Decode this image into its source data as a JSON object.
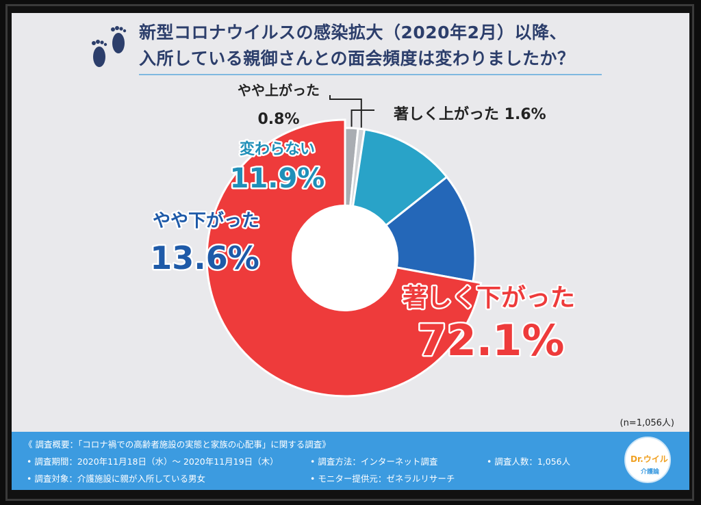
{
  "header": {
    "title_line1": "新型コロナウイルスの感染拡大（2020年2月）以降、",
    "title_line2": "入所している親御さんとの面会頻度は変わりましたか？"
  },
  "chart_data": {
    "type": "pie",
    "title": "新型コロナウイルスの感染拡大（2020年2月）以降、入所している親御さんとの面会頻度は変わりましたか？",
    "categories": [
      "著しく上がった",
      "やや上がった",
      "変わらない",
      "やや下がった",
      "著しく下がった"
    ],
    "values": [
      1.6,
      0.8,
      11.9,
      13.6,
      72.1
    ],
    "value_labels": [
      "1.6%",
      "0.8%",
      "11.9%",
      "13.6%",
      "72.1%"
    ],
    "colors": [
      "#a9adb2",
      "#cfd2d6",
      "#29a3c8",
      "#2467b8",
      "#ee3b3b"
    ],
    "note": "(n=1,056人)"
  },
  "footer": {
    "line1": "《 調査概要：「コロナ禍での高齢者施設の実態と家族の心配事」に関する調査》",
    "period": "• 調査期間：2020年11月18日（水）～ 2020年11月19日（木）",
    "method": "• 調査方法：インターネット調査",
    "count": "• 調査人数：1,056人",
    "target": "• 調査対象：介護施設に親が入所している男女",
    "provider": "• モニター提供元：ゼネラルリサーチ",
    "logo_text": "Dr.ウイル",
    "logo_sub": "介護論"
  }
}
